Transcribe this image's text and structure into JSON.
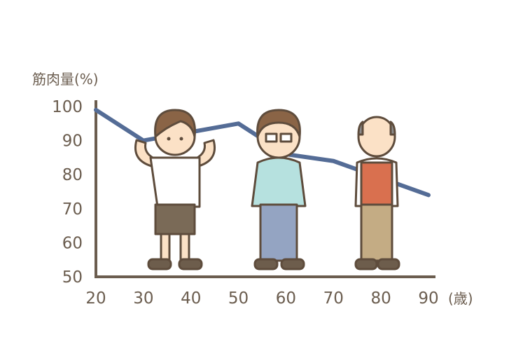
{
  "chart_data": {
    "type": "line",
    "ylabel": "筋肉量(%)",
    "xlabel": "(歳)",
    "x": [
      20,
      30,
      50,
      60,
      70,
      90
    ],
    "y": [
      99,
      90,
      95,
      86,
      84,
      74
    ],
    "xlim": [
      20,
      90
    ],
    "ylim": [
      50,
      100
    ],
    "xticks": [
      "20",
      "30",
      "40",
      "50",
      "60",
      "70",
      "80",
      "90"
    ],
    "yticks": [
      "100",
      "90",
      "80",
      "70",
      "60",
      "50"
    ],
    "grid": false,
    "colors": {
      "line": "#546c96",
      "axis": "#6b5d4f",
      "text": "#6b5d4f"
    },
    "illustrations": [
      "young-man-flexing",
      "middle-aged-man-glasses",
      "elderly-man-vest"
    ]
  }
}
